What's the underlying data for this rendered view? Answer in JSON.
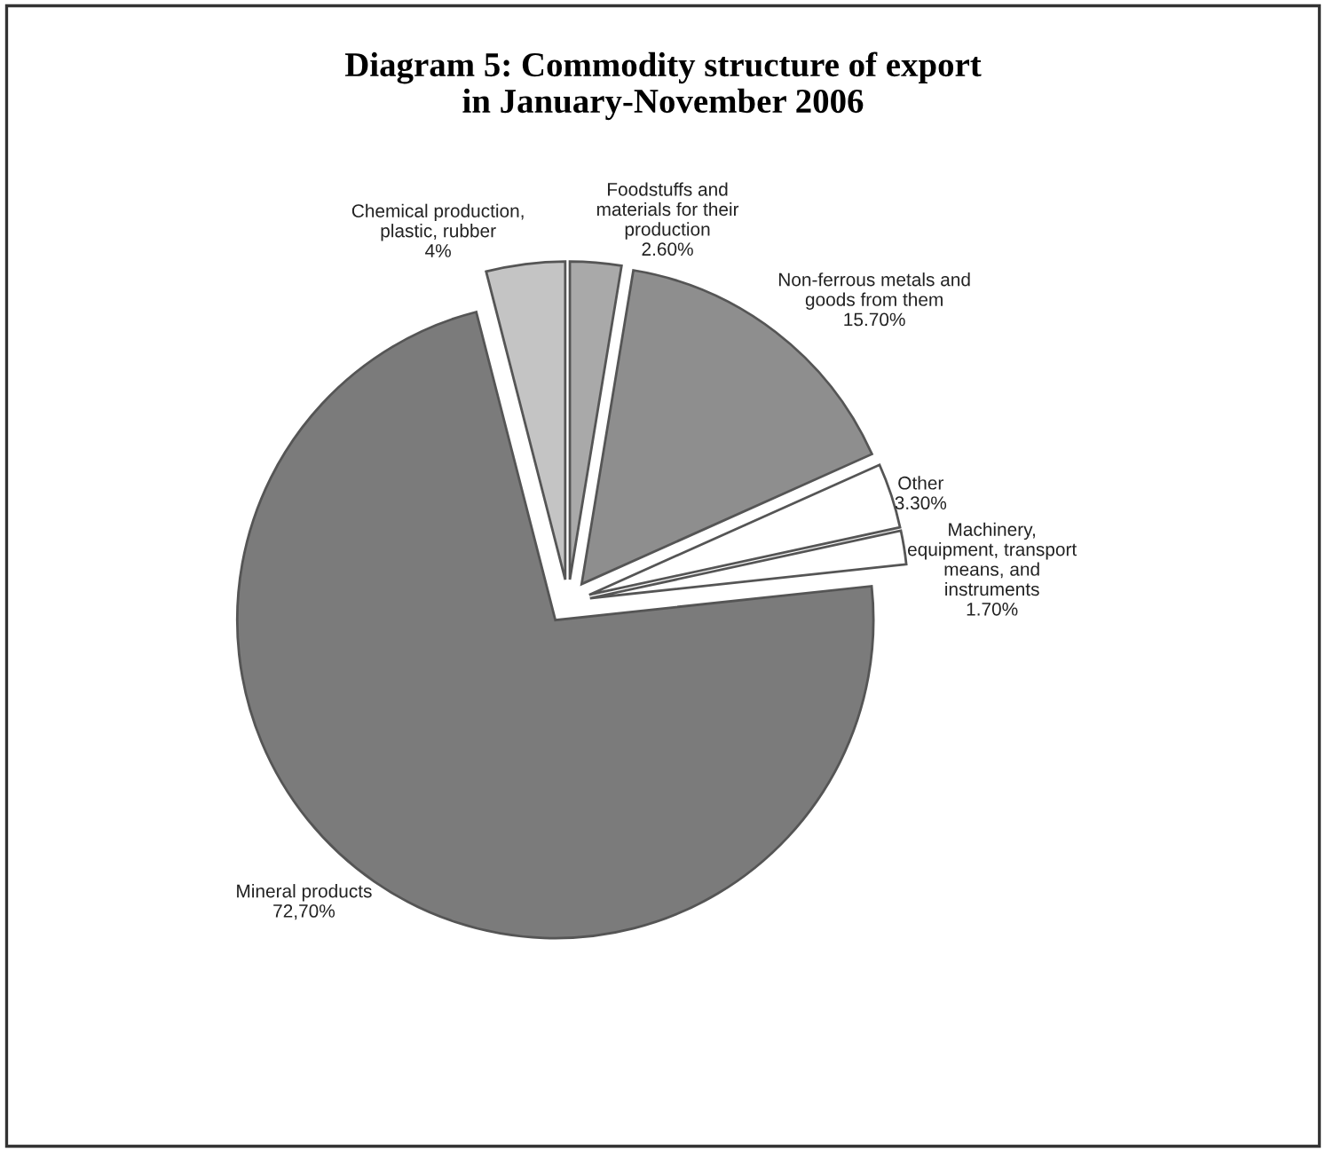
{
  "chart_data": {
    "type": "pie",
    "title": "Diagram 5: Commodity structure of export\nin January-November 2006",
    "categories": [
      "Foodstuffs and\nmaterials for their\nproduction",
      "Non-ferrous metals and\ngoods from them",
      "Other",
      "Machinery,\nequipment, transport\nmeans, and\ninstruments",
      "Mineral products",
      "Chemical production,\nplastic, rubber"
    ],
    "values": [
      2.6,
      15.7,
      3.3,
      1.7,
      72.7,
      4
    ],
    "value_labels": [
      "2.60%",
      "15.70%",
      "3.30%",
      "1.70%",
      "72,70%",
      "4%"
    ],
    "colors": [
      "#a9a9a9",
      "#8e8e8e",
      "#ffffff",
      "#ffffff",
      "#7b7b7b",
      "#c4c4c4"
    ]
  }
}
